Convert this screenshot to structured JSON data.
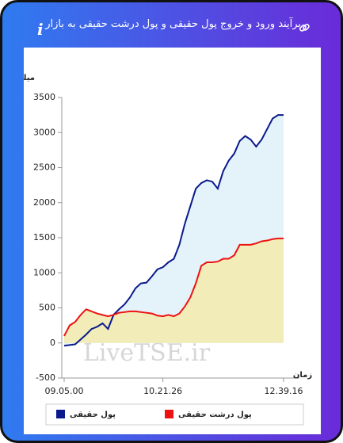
{
  "header": {
    "title": "برآیند ورود و خروج پول حقیقی و پول درشت حقیقی به بازار",
    "info": "i"
  },
  "chart_data": {
    "type": "area",
    "y_label": "میلیارد تومان",
    "x_label": "زمان",
    "watermark": "LiveTSE.ir",
    "categories": [
      "09.05.00",
      null,
      null,
      null,
      null,
      null,
      null,
      null,
      null,
      null,
      null,
      null,
      null,
      null,
      null,
      null,
      null,
      null,
      "10.21.26",
      null,
      null,
      null,
      null,
      null,
      null,
      null,
      null,
      null,
      null,
      null,
      null,
      null,
      null,
      null,
      null,
      null,
      null,
      null,
      null,
      null,
      "12.39.16"
    ],
    "series": [
      {
        "name": "پول حقیقی",
        "color": "#0a1a8c",
        "fill": "#e4f2fa",
        "values": [
          -40,
          -30,
          -20,
          50,
          120,
          200,
          230,
          280,
          200,
          400,
          480,
          550,
          650,
          780,
          850,
          860,
          950,
          1050,
          1080,
          1150,
          1200,
          1400,
          1700,
          1950,
          2200,
          2280,
          2320,
          2300,
          2200,
          2450,
          2600,
          2700,
          2880,
          2950,
          2900,
          2800,
          2900,
          3050,
          3200,
          3250,
          3250
        ]
      },
      {
        "name": "پول درشت حقیقی",
        "color": "#ee1111",
        "fill": "#f2ecb8",
        "values": [
          100,
          250,
          300,
          400,
          480,
          450,
          420,
          400,
          380,
          400,
          430,
          440,
          450,
          450,
          440,
          430,
          420,
          390,
          380,
          400,
          380,
          420,
          520,
          650,
          850,
          1100,
          1150,
          1150,
          1160,
          1200,
          1200,
          1250,
          1400,
          1400,
          1400,
          1420,
          1450,
          1460,
          1480,
          1490,
          1490
        ]
      }
    ],
    "ylim": [
      -500,
      3500
    ],
    "yticks": [
      -500,
      0,
      500,
      1000,
      1500,
      2000,
      2500,
      3000,
      3500
    ]
  }
}
